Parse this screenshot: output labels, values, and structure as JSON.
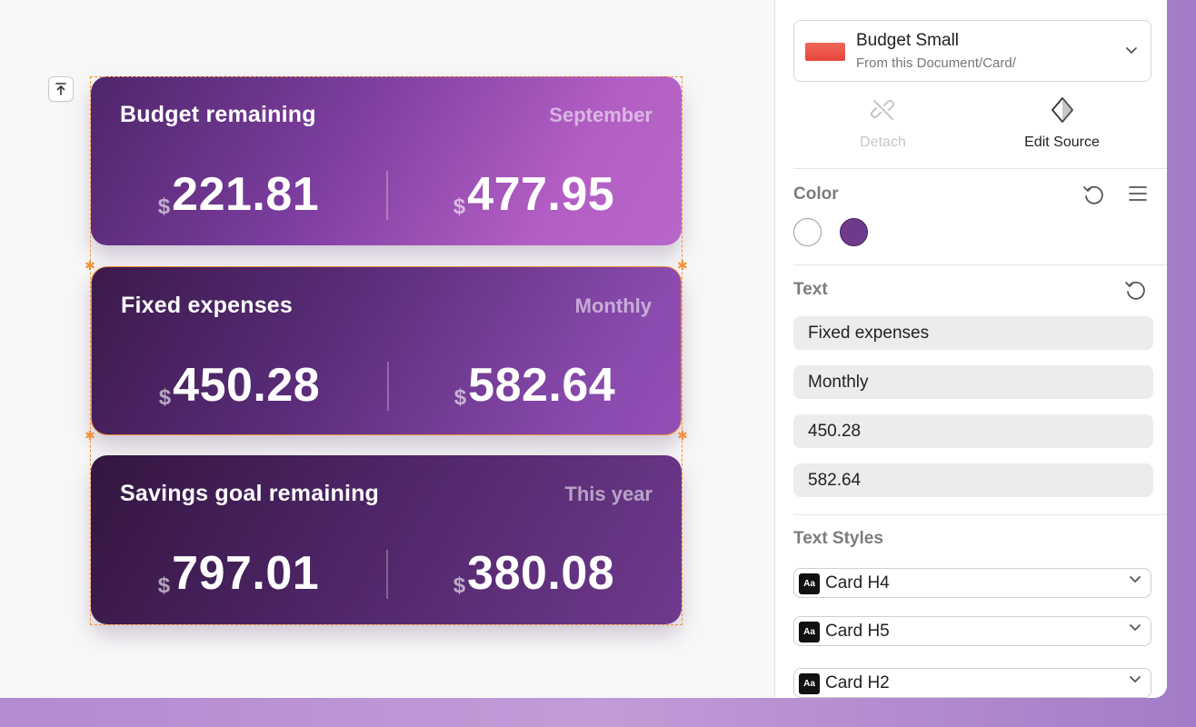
{
  "canvas": {
    "cards": [
      {
        "title": "Budget remaining",
        "period": "September",
        "currency_left": "$",
        "value_left": "221.81",
        "currency_right": "$",
        "value_right": "477.95"
      },
      {
        "title": "Fixed expenses",
        "period": "Monthly",
        "currency_left": "$",
        "value_left": "450.28",
        "currency_right": "$",
        "value_right": "582.64"
      },
      {
        "title": "Savings goal remaining",
        "period": "This year",
        "currency_left": "$",
        "value_left": "797.01",
        "currency_right": "$",
        "value_right": "380.08"
      }
    ]
  },
  "sidebar": {
    "symbol": {
      "name": "Budget Small",
      "path": "From this Document/Card/"
    },
    "actions": {
      "detach": "Detach",
      "edit_source": "Edit Source"
    },
    "color": {
      "title": "Color",
      "swatches": [
        "#ffffff",
        "#6e3a8a"
      ]
    },
    "text": {
      "title": "Text",
      "fields": [
        "Fixed expenses",
        "Monthly",
        "450.28",
        "582.64"
      ]
    },
    "text_styles": {
      "title": "Text Styles",
      "icon_label": "Aa",
      "items": [
        "Card H4",
        "Card H5",
        "Card H2"
      ]
    }
  },
  "colors": {
    "accent": "#f0923a",
    "card_purple": "#6e3a8a"
  }
}
